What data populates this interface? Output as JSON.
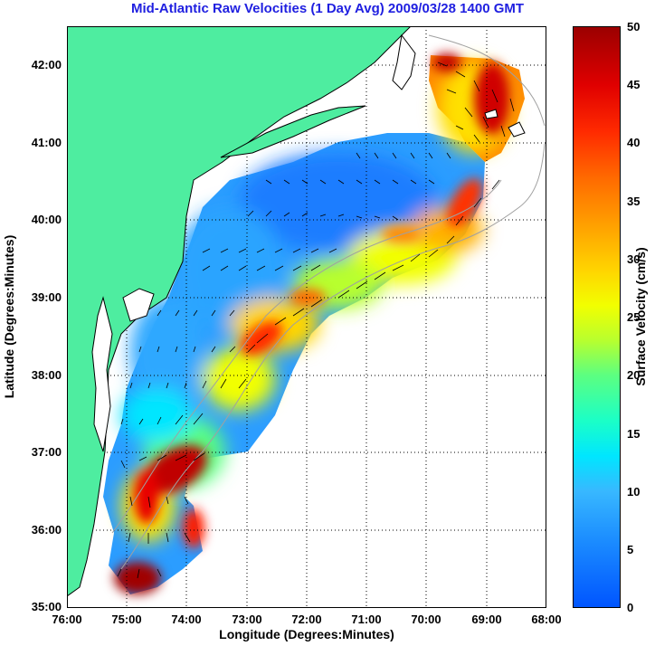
{
  "title": "Mid-Atlantic Raw Velocities (1 Day Avg) 2009/03/28 1400 GMT",
  "map": {
    "xlabel": "Longitude (Degrees:Minutes)",
    "ylabel": "Latitude (Degrees:Minutes)",
    "lon_range": [
      -76,
      -68
    ],
    "lat_range": [
      35,
      42.5
    ],
    "lon_ticks": [
      "76:00",
      "75:00",
      "74:00",
      "73:00",
      "72:00",
      "71:00",
      "70:00",
      "69:00",
      "68:00"
    ],
    "lat_ticks": [
      "35:00",
      "36:00",
      "37:00",
      "38:00",
      "39:00",
      "40:00",
      "41:00",
      "42:00"
    ],
    "grid": true,
    "colors": {
      "land": "#4eeda0",
      "coastline": "#000000",
      "bathymetry": "#a0a0a0",
      "title": "#1f1fe0"
    }
  },
  "colorbar": {
    "title": "Surface Velocity (cm/s)",
    "ticks": [
      "0",
      "5",
      "10",
      "15",
      "20",
      "25",
      "30",
      "35",
      "40",
      "45",
      "50"
    ],
    "range": [
      0,
      50
    ],
    "colormap": "jet"
  }
}
